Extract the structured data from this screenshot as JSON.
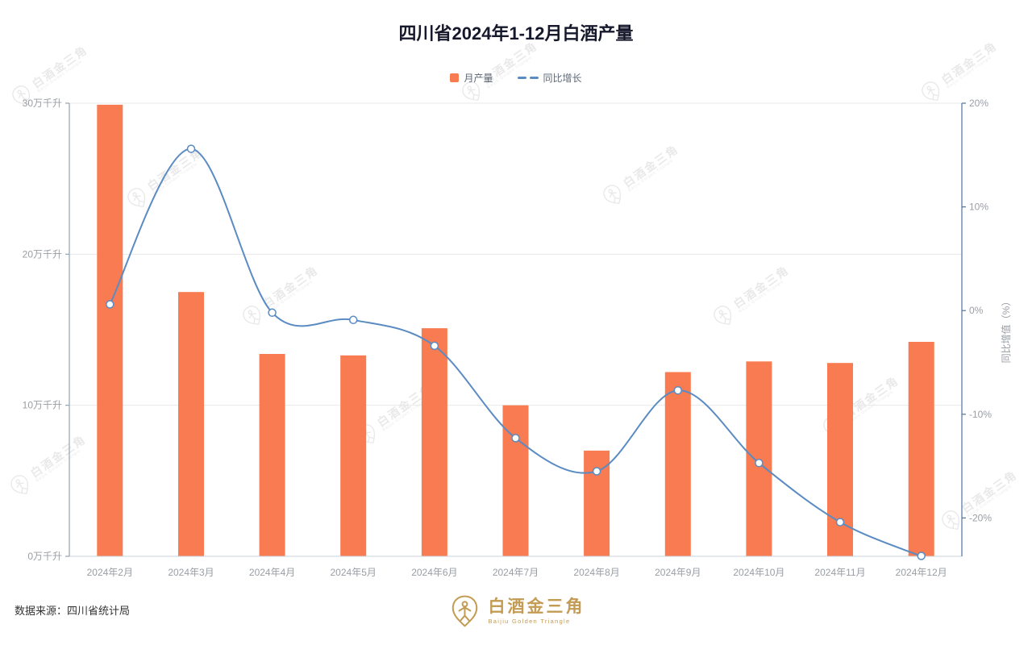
{
  "title": "四川省2024年1-12月白酒产量",
  "legend": {
    "items": [
      {
        "label": "月产量"
      },
      {
        "label": "同比增长"
      }
    ]
  },
  "chart_data": {
    "type": "bar+line",
    "title": "四川省2024年1-12月白酒产量",
    "categories": [
      "2024年2月",
      "2024年3月",
      "2024年4月",
      "2024年5月",
      "2024年6月",
      "2024年7月",
      "2024年8月",
      "2024年9月",
      "2024年10月",
      "2024年11月",
      "2024年12月"
    ],
    "series": [
      {
        "name": "月产量",
        "type": "bar",
        "yaxis": "left",
        "unit": "万千升",
        "values": [
          29.9,
          17.5,
          13.4,
          13.3,
          15.1,
          10.0,
          7.0,
          12.2,
          12.9,
          12.8,
          14.2
        ]
      },
      {
        "name": "同比增长",
        "type": "line",
        "yaxis": "right",
        "unit": "%",
        "smooth": true,
        "values": [
          0.6,
          15.6,
          -0.2,
          -0.9,
          -3.4,
          -12.3,
          -15.5,
          -7.7,
          -14.7,
          -20.4,
          -23.7
        ]
      }
    ],
    "y_left": {
      "ticks": [
        0,
        10,
        20,
        30
      ],
      "tick_suffix": "万千升",
      "lim": [
        0,
        30
      ]
    },
    "y_right": {
      "ticks": [
        20,
        10,
        0,
        -10,
        -20
      ],
      "tick_suffix": "%",
      "lim": [
        -23.7,
        20
      ],
      "name": "同比增值（%）"
    },
    "grid": "horizontal-only",
    "legend_position": "top-center"
  },
  "source_note": "数据来源：四川省统计局",
  "logo": {
    "cn": "白酒金三角",
    "en": "Baijiu Golden Triangle"
  },
  "watermark": {
    "cn": "白酒金三角",
    "en": "Baijiu Golden Triangle"
  },
  "colors": {
    "bar": "#F97B51",
    "line": "#5A8BC2",
    "axis_left": "#90A4B8",
    "axis_right": "#4F739E",
    "axis_x": "#CBD1D8",
    "grid": "#E8E8E8",
    "tick_label": "#999EA4",
    "title": "#16182B",
    "legend_text": "#5E6877",
    "source_text": "#333333",
    "gold": "#C39B53",
    "watermark": "#E9E9E9"
  }
}
